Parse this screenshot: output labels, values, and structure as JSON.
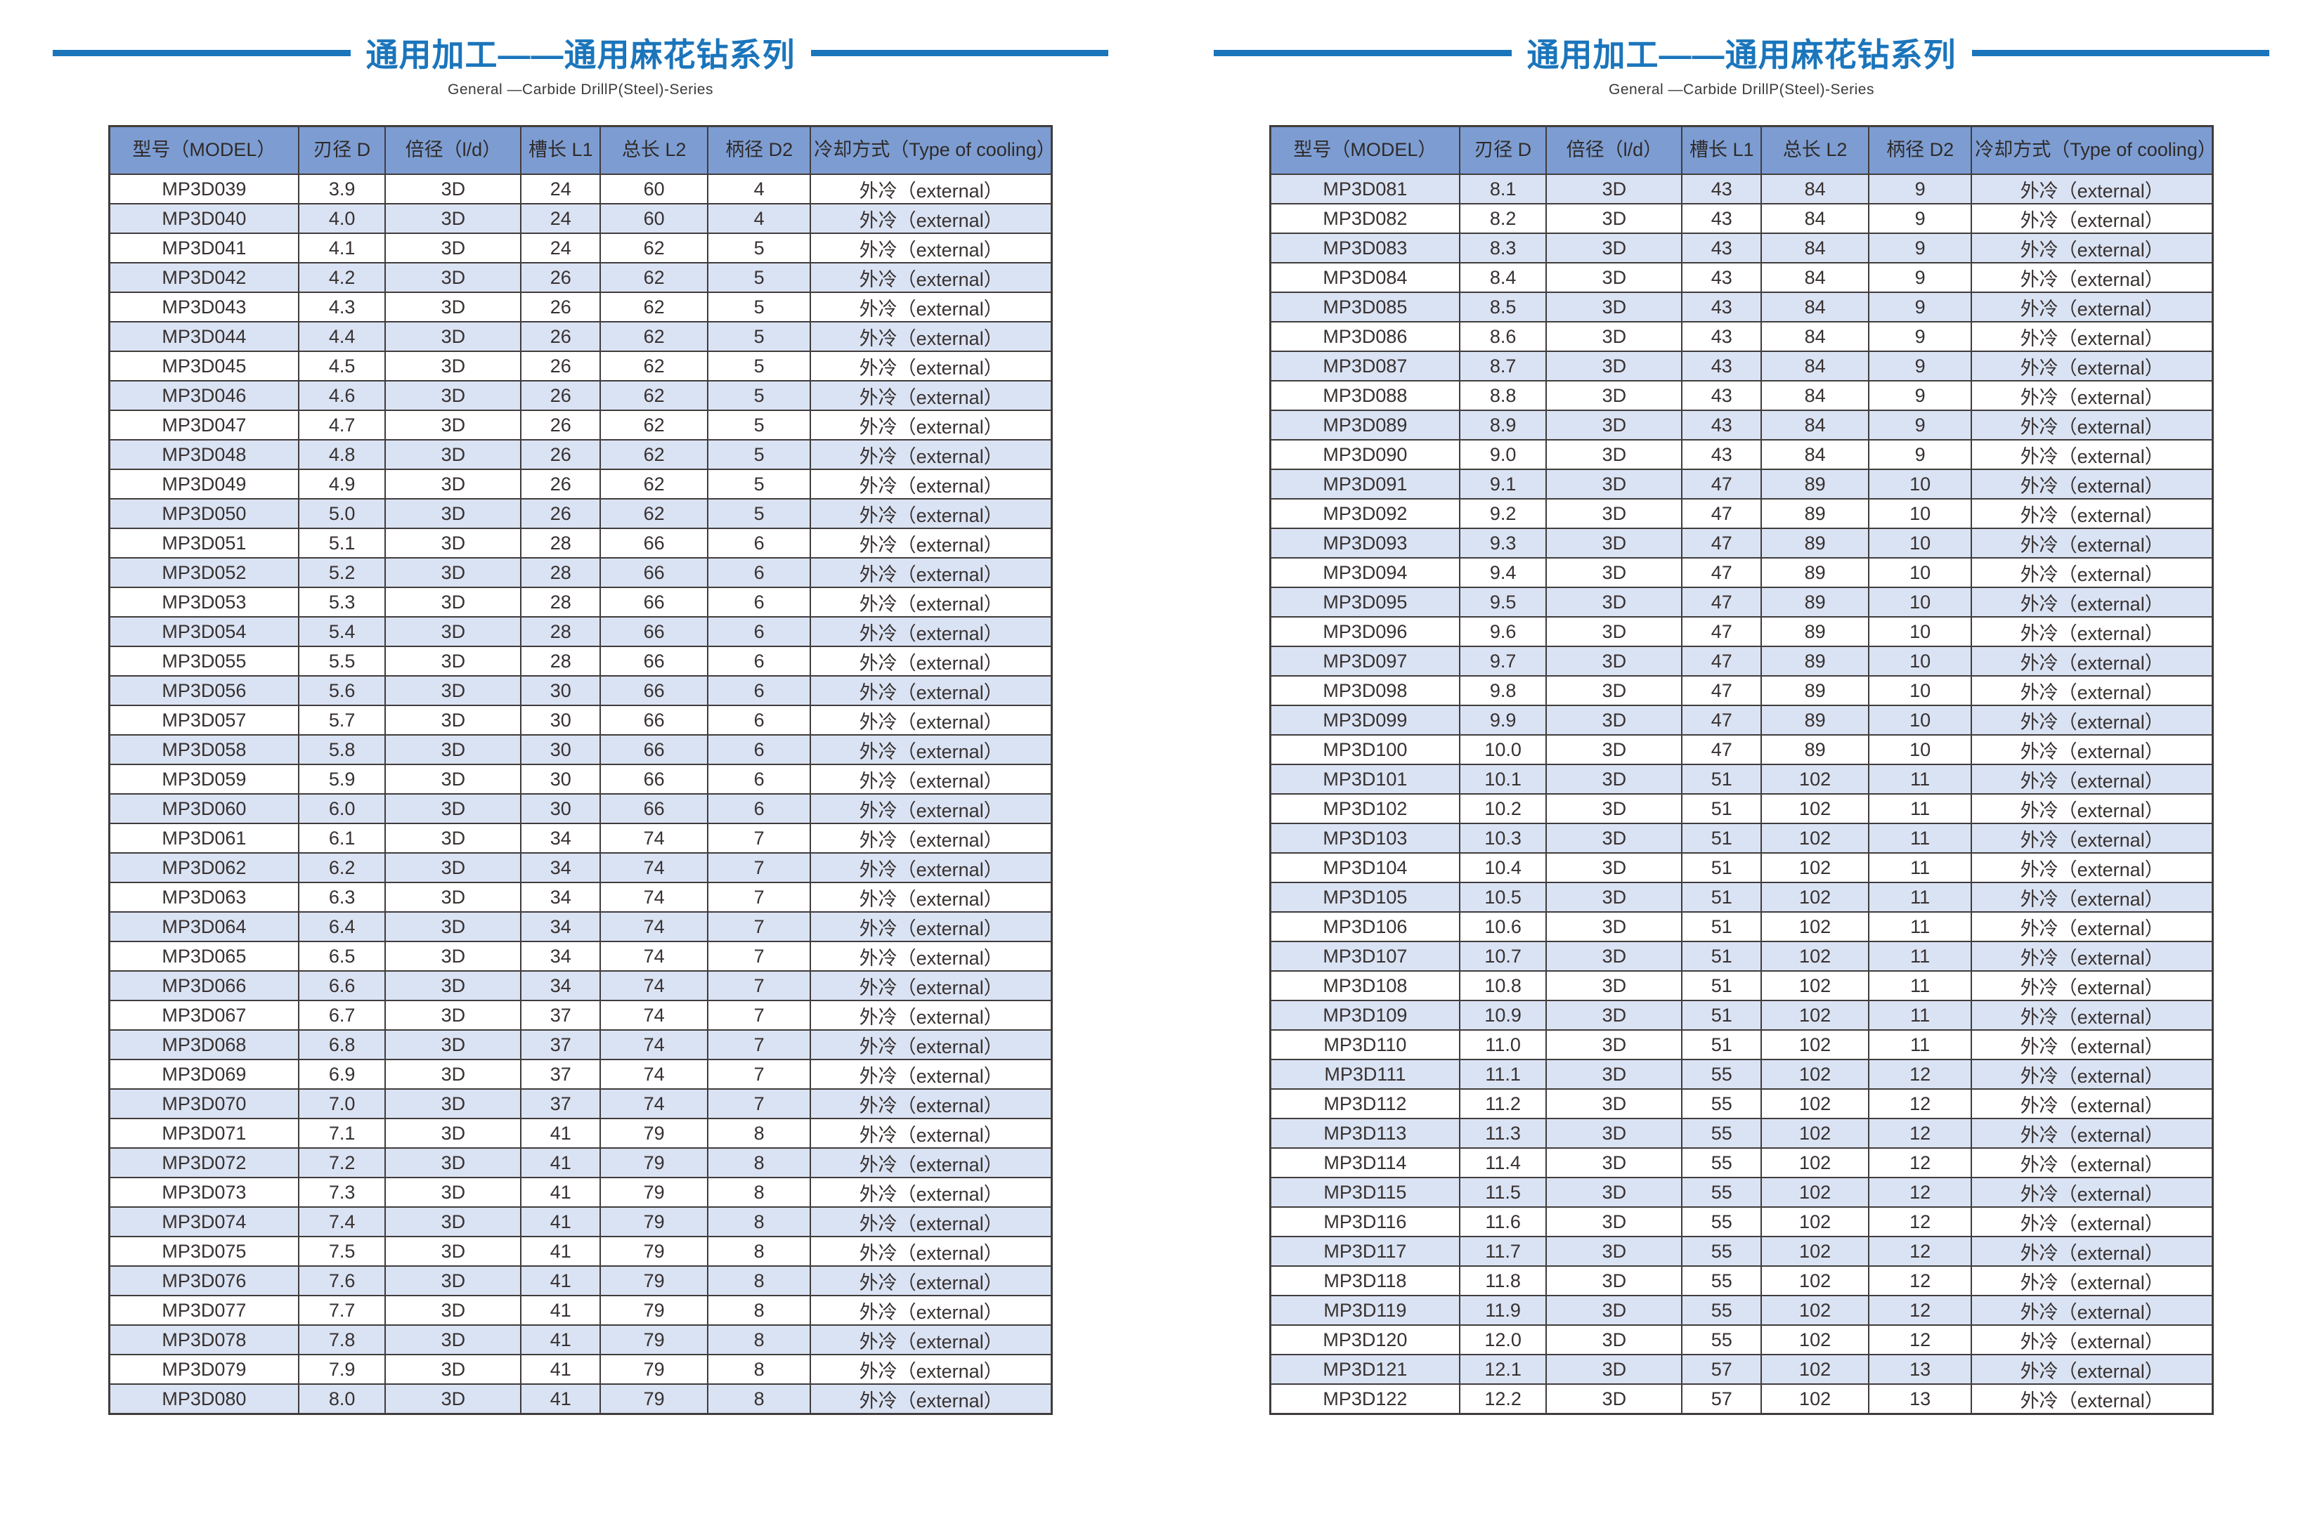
{
  "page": {
    "title": "通用加工——通用麻花钻系列",
    "subtitle": "General —Carbide DrillP(Steel)-Series"
  },
  "colors": {
    "accent_blue": "#1b75bb",
    "header_fill": "#7d9dd2",
    "stripe_fill": "#dae3f3",
    "border": "#413c3c"
  },
  "table_headers": [
    "型号（MODEL）",
    "刃径 D",
    "倍径（l/d）",
    "槽长 L1",
    "总长 L2",
    "柄径 D2",
    "冷却方式（Type of cooling）"
  ],
  "cooling_value": "外冷（external）",
  "tables": [
    {
      "id": "left",
      "first_row_shaded": false,
      "rows": [
        [
          "MP3D039",
          "3.9",
          "3D",
          "24",
          "60",
          "4",
          "外冷（external）"
        ],
        [
          "MP3D040",
          "4.0",
          "3D",
          "24",
          "60",
          "4",
          "外冷（external）"
        ],
        [
          "MP3D041",
          "4.1",
          "3D",
          "24",
          "62",
          "5",
          "外冷（external）"
        ],
        [
          "MP3D042",
          "4.2",
          "3D",
          "26",
          "62",
          "5",
          "外冷（external）"
        ],
        [
          "MP3D043",
          "4.3",
          "3D",
          "26",
          "62",
          "5",
          "外冷（external）"
        ],
        [
          "MP3D044",
          "4.4",
          "3D",
          "26",
          "62",
          "5",
          "外冷（external）"
        ],
        [
          "MP3D045",
          "4.5",
          "3D",
          "26",
          "62",
          "5",
          "外冷（external）"
        ],
        [
          "MP3D046",
          "4.6",
          "3D",
          "26",
          "62",
          "5",
          "外冷（external）"
        ],
        [
          "MP3D047",
          "4.7",
          "3D",
          "26",
          "62",
          "5",
          "外冷（external）"
        ],
        [
          "MP3D048",
          "4.8",
          "3D",
          "26",
          "62",
          "5",
          "外冷（external）"
        ],
        [
          "MP3D049",
          "4.9",
          "3D",
          "26",
          "62",
          "5",
          "外冷（external）"
        ],
        [
          "MP3D050",
          "5.0",
          "3D",
          "26",
          "62",
          "5",
          "外冷（external）"
        ],
        [
          "MP3D051",
          "5.1",
          "3D",
          "28",
          "66",
          "6",
          "外冷（external）"
        ],
        [
          "MP3D052",
          "5.2",
          "3D",
          "28",
          "66",
          "6",
          "外冷（external）"
        ],
        [
          "MP3D053",
          "5.3",
          "3D",
          "28",
          "66",
          "6",
          "外冷（external）"
        ],
        [
          "MP3D054",
          "5.4",
          "3D",
          "28",
          "66",
          "6",
          "外冷（external）"
        ],
        [
          "MP3D055",
          "5.5",
          "3D",
          "28",
          "66",
          "6",
          "外冷（external）"
        ],
        [
          "MP3D056",
          "5.6",
          "3D",
          "30",
          "66",
          "6",
          "外冷（external）"
        ],
        [
          "MP3D057",
          "5.7",
          "3D",
          "30",
          "66",
          "6",
          "外冷（external）"
        ],
        [
          "MP3D058",
          "5.8",
          "3D",
          "30",
          "66",
          "6",
          "外冷（external）"
        ],
        [
          "MP3D059",
          "5.9",
          "3D",
          "30",
          "66",
          "6",
          "外冷（external）"
        ],
        [
          "MP3D060",
          "6.0",
          "3D",
          "30",
          "66",
          "6",
          "外冷（external）"
        ],
        [
          "MP3D061",
          "6.1",
          "3D",
          "34",
          "74",
          "7",
          "外冷（external）"
        ],
        [
          "MP3D062",
          "6.2",
          "3D",
          "34",
          "74",
          "7",
          "外冷（external）"
        ],
        [
          "MP3D063",
          "6.3",
          "3D",
          "34",
          "74",
          "7",
          "外冷（external）"
        ],
        [
          "MP3D064",
          "6.4",
          "3D",
          "34",
          "74",
          "7",
          "外冷（external）"
        ],
        [
          "MP3D065",
          "6.5",
          "3D",
          "34",
          "74",
          "7",
          "外冷（external）"
        ],
        [
          "MP3D066",
          "6.6",
          "3D",
          "34",
          "74",
          "7",
          "外冷（external）"
        ],
        [
          "MP3D067",
          "6.7",
          "3D",
          "37",
          "74",
          "7",
          "外冷（external）"
        ],
        [
          "MP3D068",
          "6.8",
          "3D",
          "37",
          "74",
          "7",
          "外冷（external）"
        ],
        [
          "MP3D069",
          "6.9",
          "3D",
          "37",
          "74",
          "7",
          "外冷（external）"
        ],
        [
          "MP3D070",
          "7.0",
          "3D",
          "37",
          "74",
          "7",
          "外冷（external）"
        ],
        [
          "MP3D071",
          "7.1",
          "3D",
          "41",
          "79",
          "8",
          "外冷（external）"
        ],
        [
          "MP3D072",
          "7.2",
          "3D",
          "41",
          "79",
          "8",
          "外冷（external）"
        ],
        [
          "MP3D073",
          "7.3",
          "3D",
          "41",
          "79",
          "8",
          "外冷（external）"
        ],
        [
          "MP3D074",
          "7.4",
          "3D",
          "41",
          "79",
          "8",
          "外冷（external）"
        ],
        [
          "MP3D075",
          "7.5",
          "3D",
          "41",
          "79",
          "8",
          "外冷（external）"
        ],
        [
          "MP3D076",
          "7.6",
          "3D",
          "41",
          "79",
          "8",
          "外冷（external）"
        ],
        [
          "MP3D077",
          "7.7",
          "3D",
          "41",
          "79",
          "8",
          "外冷（external）"
        ],
        [
          "MP3D078",
          "7.8",
          "3D",
          "41",
          "79",
          "8",
          "外冷（external）"
        ],
        [
          "MP3D079",
          "7.9",
          "3D",
          "41",
          "79",
          "8",
          "外冷（external）"
        ],
        [
          "MP3D080",
          "8.0",
          "3D",
          "41",
          "79",
          "8",
          "外冷（external）"
        ]
      ]
    },
    {
      "id": "right",
      "first_row_shaded": true,
      "rows": [
        [
          "MP3D081",
          "8.1",
          "3D",
          "43",
          "84",
          "9",
          "外冷（external）"
        ],
        [
          "MP3D082",
          "8.2",
          "3D",
          "43",
          "84",
          "9",
          "外冷（external）"
        ],
        [
          "MP3D083",
          "8.3",
          "3D",
          "43",
          "84",
          "9",
          "外冷（external）"
        ],
        [
          "MP3D084",
          "8.4",
          "3D",
          "43",
          "84",
          "9",
          "外冷（external）"
        ],
        [
          "MP3D085",
          "8.5",
          "3D",
          "43",
          "84",
          "9",
          "外冷（external）"
        ],
        [
          "MP3D086",
          "8.6",
          "3D",
          "43",
          "84",
          "9",
          "外冷（external）"
        ],
        [
          "MP3D087",
          "8.7",
          "3D",
          "43",
          "84",
          "9",
          "外冷（external）"
        ],
        [
          "MP3D088",
          "8.8",
          "3D",
          "43",
          "84",
          "9",
          "外冷（external）"
        ],
        [
          "MP3D089",
          "8.9",
          "3D",
          "43",
          "84",
          "9",
          "外冷（external）"
        ],
        [
          "MP3D090",
          "9.0",
          "3D",
          "43",
          "84",
          "9",
          "外冷（external）"
        ],
        [
          "MP3D091",
          "9.1",
          "3D",
          "47",
          "89",
          "10",
          "外冷（external）"
        ],
        [
          "MP3D092",
          "9.2",
          "3D",
          "47",
          "89",
          "10",
          "外冷（external）"
        ],
        [
          "MP3D093",
          "9.3",
          "3D",
          "47",
          "89",
          "10",
          "外冷（external）"
        ],
        [
          "MP3D094",
          "9.4",
          "3D",
          "47",
          "89",
          "10",
          "外冷（external）"
        ],
        [
          "MP3D095",
          "9.5",
          "3D",
          "47",
          "89",
          "10",
          "外冷（external）"
        ],
        [
          "MP3D096",
          "9.6",
          "3D",
          "47",
          "89",
          "10",
          "外冷（external）"
        ],
        [
          "MP3D097",
          "9.7",
          "3D",
          "47",
          "89",
          "10",
          "外冷（external）"
        ],
        [
          "MP3D098",
          "9.8",
          "3D",
          "47",
          "89",
          "10",
          "外冷（external）"
        ],
        [
          "MP3D099",
          "9.9",
          "3D",
          "47",
          "89",
          "10",
          "外冷（external）"
        ],
        [
          "MP3D100",
          "10.0",
          "3D",
          "47",
          "89",
          "10",
          "外冷（external）"
        ],
        [
          "MP3D101",
          "10.1",
          "3D",
          "51",
          "102",
          "11",
          "外冷（external）"
        ],
        [
          "MP3D102",
          "10.2",
          "3D",
          "51",
          "102",
          "11",
          "外冷（external）"
        ],
        [
          "MP3D103",
          "10.3",
          "3D",
          "51",
          "102",
          "11",
          "外冷（external）"
        ],
        [
          "MP3D104",
          "10.4",
          "3D",
          "51",
          "102",
          "11",
          "外冷（external）"
        ],
        [
          "MP3D105",
          "10.5",
          "3D",
          "51",
          "102",
          "11",
          "外冷（external）"
        ],
        [
          "MP3D106",
          "10.6",
          "3D",
          "51",
          "102",
          "11",
          "外冷（external）"
        ],
        [
          "MP3D107",
          "10.7",
          "3D",
          "51",
          "102",
          "11",
          "外冷（external）"
        ],
        [
          "MP3D108",
          "10.8",
          "3D",
          "51",
          "102",
          "11",
          "外冷（external）"
        ],
        [
          "MP3D109",
          "10.9",
          "3D",
          "51",
          "102",
          "11",
          "外冷（external）"
        ],
        [
          "MP3D110",
          "11.0",
          "3D",
          "51",
          "102",
          "11",
          "外冷（external）"
        ],
        [
          "MP3D111",
          "11.1",
          "3D",
          "55",
          "102",
          "12",
          "外冷（external）"
        ],
        [
          "MP3D112",
          "11.2",
          "3D",
          "55",
          "102",
          "12",
          "外冷（external）"
        ],
        [
          "MP3D113",
          "11.3",
          "3D",
          "55",
          "102",
          "12",
          "外冷（external）"
        ],
        [
          "MP3D114",
          "11.4",
          "3D",
          "55",
          "102",
          "12",
          "外冷（external）"
        ],
        [
          "MP3D115",
          "11.5",
          "3D",
          "55",
          "102",
          "12",
          "外冷（external）"
        ],
        [
          "MP3D116",
          "11.6",
          "3D",
          "55",
          "102",
          "12",
          "外冷（external）"
        ],
        [
          "MP3D117",
          "11.7",
          "3D",
          "55",
          "102",
          "12",
          "外冷（external）"
        ],
        [
          "MP3D118",
          "11.8",
          "3D",
          "55",
          "102",
          "12",
          "外冷（external）"
        ],
        [
          "MP3D119",
          "11.9",
          "3D",
          "55",
          "102",
          "12",
          "外冷（external）"
        ],
        [
          "MP3D120",
          "12.0",
          "3D",
          "55",
          "102",
          "12",
          "外冷（external）"
        ],
        [
          "MP3D121",
          "12.1",
          "3D",
          "57",
          "102",
          "13",
          "外冷（external）"
        ],
        [
          "MP3D122",
          "12.2",
          "3D",
          "57",
          "102",
          "13",
          "外冷（external）"
        ]
      ]
    }
  ]
}
